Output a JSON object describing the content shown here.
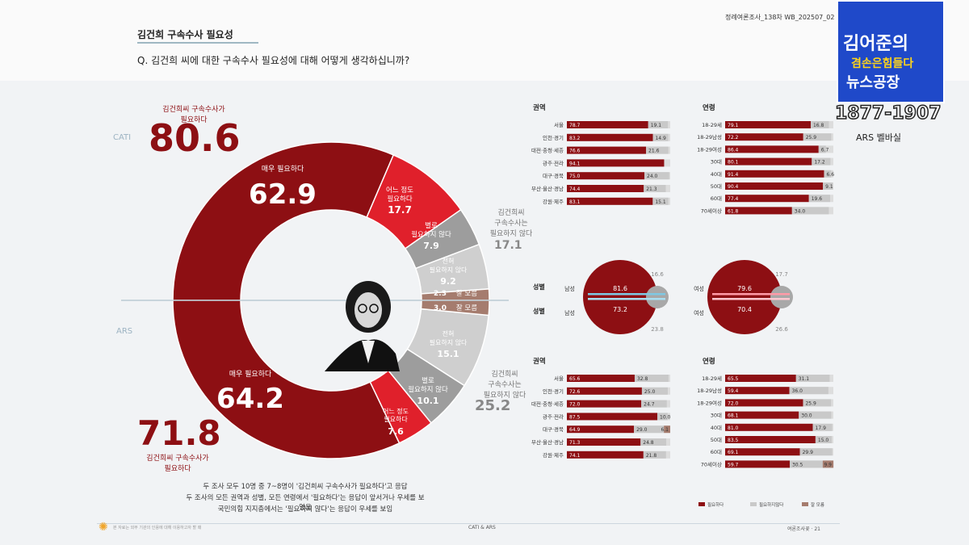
{
  "header": {
    "section_title": "김건희 구속수사 필요성",
    "question": "Q. 김건희 씨에 대한 구속수사 필요성에 대해 어떻게 생각하십니까?",
    "report_tag": "정례여론조사_138차          WB_202507_02"
  },
  "broadcast": {
    "logo_line1": "김어준의",
    "logo_line2": "겸손은힘들다",
    "logo_line3": "뉴스공장",
    "phone": "1877-1907",
    "caption": "ARS 벨바실"
  },
  "colors": {
    "dark_red": "#8d0f13",
    "red": "#e0202b",
    "gray": "#9d9d9d",
    "light_gray": "#cfcfcf",
    "brown": "#a57c6e",
    "cati_band": "#7ec8e3",
    "ars_band": "#ff9aa7"
  },
  "left": {
    "cati_label": "CATI",
    "ars_label": "ARS",
    "cati_total_caption": "김건희씨 구속수사가\n필요하다",
    "cati_total": "80.6",
    "ars_total": "71.8",
    "ars_total_caption": "김건희씨 구속수사가\n필요하다",
    "cati_not_caption": "김건희씨\n구속수사는\n필요하지 않다",
    "cati_not_total": "17.1",
    "ars_not_caption": "김건희씨\n구속수사는\n필요하지 않다",
    "ars_not_total": "25.2",
    "footnotes": [
      "두 조사 모두 10명 중 7~8명이 '김건희씨 구속수사가 필요하다'고 응답",
      "두 조사의 모든 권역과 성별, 모든 연령에서 '필요하다'는 응답이 앞서거나 우세를 보였음",
      "국민의힘 지지층에서는 '필요하지 않다'는 응답이 우세를 보임"
    ]
  },
  "chart_data": [
    {
      "type": "pie",
      "title": "CATI",
      "categories": [
        "매우 필요하다",
        "어느 정도 필요하다",
        "별로 필요하지 않다",
        "전혀 필요하지 않다",
        "잘 모름"
      ],
      "values": [
        62.9,
        17.7,
        7.9,
        9.2,
        2.3
      ]
    },
    {
      "type": "pie",
      "title": "ARS",
      "categories": [
        "매우 필요하다",
        "어느 정도 필요하다",
        "별로 필요하지 않다",
        "전혀 필요하지 않다",
        "잘 모름"
      ],
      "values": [
        64.2,
        7.6,
        10.1,
        15.1,
        3.0
      ]
    },
    {
      "type": "bar",
      "title": "권역",
      "method": "CATI",
      "categories": [
        "서울",
        "인천·경기",
        "대전·충청·세종",
        "광주·전라",
        "대구·경북",
        "부산·울산·경남",
        "강원·제주"
      ],
      "series": [
        {
          "name": "필요하다",
          "values": [
            78.7,
            83.2,
            76.6,
            94.1,
            75.0,
            74.4,
            83.1
          ]
        },
        {
          "name": "필요하지않다",
          "values": [
            19.1,
            14.9,
            21.6,
            0,
            24.0,
            21.3,
            15.1
          ]
        }
      ]
    },
    {
      "type": "bar",
      "title": "연령",
      "method": "CATI",
      "categories": [
        "18-29세",
        "18-29남성",
        "18-29여성",
        "30대",
        "40대",
        "50대",
        "60대",
        "70세이상"
      ],
      "series": [
        {
          "name": "필요하다",
          "values": [
            79.1,
            72.2,
            86.4,
            80.1,
            91.4,
            90.4,
            77.4,
            61.8
          ]
        },
        {
          "name": "필요하지않다",
          "values": [
            16.8,
            25.9,
            6.7,
            17.2,
            6.6,
            9.1,
            19.6,
            34.0
          ]
        }
      ]
    },
    {
      "type": "bar",
      "title": "권역",
      "method": "ARS",
      "categories": [
        "서울",
        "인천·경기",
        "대전·충청·세종",
        "광주·전라",
        "대구·경북",
        "부산·울산·경남",
        "강원·제주"
      ],
      "series": [
        {
          "name": "필요하다",
          "values": [
            65.6,
            72.6,
            72.0,
            87.5,
            64.9,
            71.3,
            74.1
          ]
        },
        {
          "name": "필요하지않다",
          "values": [
            32.8,
            25.0,
            24.7,
            10.0,
            29.0,
            24.8,
            21.8
          ]
        },
        {
          "name": "잘 모름",
          "values": [
            0,
            0,
            0,
            0,
            6.1,
            0,
            0
          ]
        }
      ]
    },
    {
      "type": "bar",
      "title": "연령",
      "method": "ARS",
      "categories": [
        "18-29세",
        "18-29남성",
        "18-29여성",
        "30대",
        "40대",
        "50대",
        "60대",
        "70세이상"
      ],
      "series": [
        {
          "name": "필요하다",
          "values": [
            65.5,
            59.4,
            72.0,
            68.1,
            81.0,
            83.5,
            69.1,
            59.7
          ]
        },
        {
          "name": "필요하지않다",
          "values": [
            31.1,
            36.0,
            25.9,
            30.0,
            17.9,
            15.0,
            29.9,
            30.5
          ]
        },
        {
          "name": "잘 모름",
          "values": [
            0,
            0,
            0,
            0,
            0,
            0,
            0,
            9.9
          ]
        }
      ]
    },
    {
      "type": "scatter",
      "title": "성별",
      "categories": [
        "남성",
        "여성"
      ],
      "series": [
        {
          "name": "CATI 필요하다",
          "values": [
            81.6,
            79.6
          ]
        },
        {
          "name": "CATI 필요하지않다",
          "values": [
            16.6,
            17.7
          ]
        },
        {
          "name": "ARS 필요하다",
          "values": [
            73.2,
            70.4
          ]
        },
        {
          "name": "ARS 필요하지않다",
          "values": [
            23.8,
            26.6
          ]
        }
      ]
    }
  ],
  "labels": {
    "region": "권역",
    "age": "연령",
    "gender": "성별",
    "male": "남성",
    "female": "여성",
    "legend_need": "필요하다",
    "legend_no_need": "필요하지않다",
    "legend_dk": "잘 모름"
  },
  "footer": {
    "left": "본 자료는 외부 기관의 인용에 대해 이용하고자 할 때",
    "middle": "CATI & ARS",
    "right": "여론조사꽃 · 21"
  }
}
